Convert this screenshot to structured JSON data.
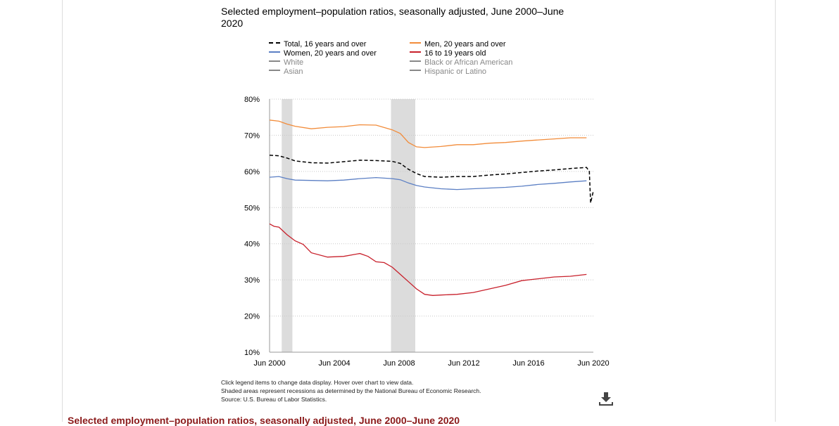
{
  "page": {
    "bottom_link": "Selected employment–population ratios, seasonally adjusted, June 2000–June 2020"
  },
  "chart_data": {
    "type": "line",
    "title": "Selected employment–population ratios, seasonally adjusted, June 2000–June 2020",
    "xlabel": "",
    "ylabel": "",
    "x_ticks": [
      "Jun 2000",
      "Jun 2004",
      "Jun 2008",
      "Jun 2012",
      "Jun 2016",
      "Jun 2020"
    ],
    "y_ticks": [
      "80%",
      "70%",
      "60%",
      "50%",
      "40%",
      "30%",
      "20%",
      "10%"
    ],
    "ylim": [
      10,
      80
    ],
    "xlim": [
      2000.42,
      2020.42
    ],
    "grid": "horizontal dotted",
    "legend_position": "top",
    "recessions": [
      [
        2001.17,
        2001.83
      ],
      [
        2007.92,
        2009.42
      ]
    ],
    "series": [
      {
        "name": "Total, 16 years and over",
        "color": "#000000",
        "dash": true,
        "active": true,
        "points": [
          [
            2000.42,
            64.5
          ],
          [
            2001.0,
            64.3
          ],
          [
            2001.5,
            63.7
          ],
          [
            2002.0,
            62.9
          ],
          [
            2003.0,
            62.4
          ],
          [
            2004.0,
            62.3
          ],
          [
            2005.0,
            62.7
          ],
          [
            2006.0,
            63.1
          ],
          [
            2007.0,
            63.0
          ],
          [
            2008.0,
            62.8
          ],
          [
            2008.5,
            62.2
          ],
          [
            2009.0,
            60.6
          ],
          [
            2009.5,
            59.4
          ],
          [
            2010.0,
            58.6
          ],
          [
            2011.0,
            58.4
          ],
          [
            2012.0,
            58.6
          ],
          [
            2013.0,
            58.6
          ],
          [
            2014.0,
            59.0
          ],
          [
            2015.0,
            59.3
          ],
          [
            2016.0,
            59.7
          ],
          [
            2017.0,
            60.1
          ],
          [
            2018.0,
            60.4
          ],
          [
            2019.0,
            60.8
          ],
          [
            2020.0,
            61.1
          ],
          [
            2020.17,
            60.0
          ],
          [
            2020.25,
            51.3
          ],
          [
            2020.33,
            52.8
          ],
          [
            2020.42,
            54.6
          ]
        ]
      },
      {
        "name": "Men, 20 years and over",
        "color": "#f28c3a",
        "dash": false,
        "active": true,
        "points": [
          [
            2000.42,
            74.2
          ],
          [
            2001.0,
            73.9
          ],
          [
            2001.5,
            73.1
          ],
          [
            2002.0,
            72.5
          ],
          [
            2003.0,
            71.8
          ],
          [
            2004.0,
            72.2
          ],
          [
            2005.0,
            72.4
          ],
          [
            2006.0,
            72.9
          ],
          [
            2007.0,
            72.8
          ],
          [
            2008.0,
            71.5
          ],
          [
            2008.5,
            70.5
          ],
          [
            2009.0,
            68.0
          ],
          [
            2009.5,
            66.8
          ],
          [
            2010.0,
            66.6
          ],
          [
            2011.0,
            66.9
          ],
          [
            2012.0,
            67.4
          ],
          [
            2013.0,
            67.4
          ],
          [
            2014.0,
            67.8
          ],
          [
            2015.0,
            68.0
          ],
          [
            2016.0,
            68.4
          ],
          [
            2017.0,
            68.7
          ],
          [
            2018.0,
            69.0
          ],
          [
            2019.0,
            69.3
          ],
          [
            2020.0,
            69.3
          ]
        ]
      },
      {
        "name": "Women, 20 years and over",
        "color": "#5b7fc4",
        "dash": false,
        "active": true,
        "points": [
          [
            2000.42,
            58.4
          ],
          [
            2001.0,
            58.6
          ],
          [
            2001.5,
            58.0
          ],
          [
            2002.0,
            57.6
          ],
          [
            2003.0,
            57.5
          ],
          [
            2004.0,
            57.4
          ],
          [
            2005.0,
            57.6
          ],
          [
            2006.0,
            58.0
          ],
          [
            2007.0,
            58.3
          ],
          [
            2008.0,
            58.0
          ],
          [
            2008.5,
            57.7
          ],
          [
            2009.0,
            56.8
          ],
          [
            2009.5,
            56.1
          ],
          [
            2010.0,
            55.7
          ],
          [
            2011.0,
            55.2
          ],
          [
            2012.0,
            55.0
          ],
          [
            2013.0,
            55.2
          ],
          [
            2014.0,
            55.4
          ],
          [
            2015.0,
            55.6
          ],
          [
            2016.0,
            55.9
          ],
          [
            2017.0,
            56.4
          ],
          [
            2018.0,
            56.7
          ],
          [
            2019.0,
            57.1
          ],
          [
            2020.0,
            57.4
          ]
        ]
      },
      {
        "name": "16 to 19 years old",
        "color": "#c8202b",
        "dash": false,
        "active": true,
        "points": [
          [
            2000.42,
            45.5
          ],
          [
            2000.7,
            44.8
          ],
          [
            2001.0,
            44.6
          ],
          [
            2001.5,
            42.5
          ],
          [
            2002.0,
            40.8
          ],
          [
            2002.5,
            39.8
          ],
          [
            2003.0,
            37.5
          ],
          [
            2004.0,
            36.3
          ],
          [
            2005.0,
            36.5
          ],
          [
            2006.0,
            37.3
          ],
          [
            2006.5,
            36.5
          ],
          [
            2007.0,
            35.0
          ],
          [
            2007.5,
            34.8
          ],
          [
            2008.0,
            33.5
          ],
          [
            2008.5,
            31.5
          ],
          [
            2009.0,
            29.5
          ],
          [
            2009.5,
            27.5
          ],
          [
            2010.0,
            26.0
          ],
          [
            2010.5,
            25.7
          ],
          [
            2011.0,
            25.8
          ],
          [
            2012.0,
            26.0
          ],
          [
            2013.0,
            26.5
          ],
          [
            2014.0,
            27.5
          ],
          [
            2015.0,
            28.5
          ],
          [
            2016.0,
            29.8
          ],
          [
            2017.0,
            30.3
          ],
          [
            2018.0,
            30.8
          ],
          [
            2019.0,
            31.0
          ],
          [
            2020.0,
            31.5
          ]
        ]
      },
      {
        "name": "White",
        "color": "#888888",
        "dash": false,
        "active": false,
        "points": []
      },
      {
        "name": "Black or African American",
        "color": "#888888",
        "dash": false,
        "active": false,
        "points": []
      },
      {
        "name": "Asian",
        "color": "#888888",
        "dash": false,
        "active": false,
        "points": []
      },
      {
        "name": "Hispanic or Latino",
        "color": "#888888",
        "dash": false,
        "active": false,
        "points": []
      }
    ],
    "notes": [
      "Click legend items to change data display. Hover over chart to view data.",
      "Shaded areas represent recessions as determined by the National Bureau of Economic Research.",
      "Source: U.S. Bureau of Labor Statistics."
    ]
  },
  "icons": {
    "download": "download-icon"
  }
}
